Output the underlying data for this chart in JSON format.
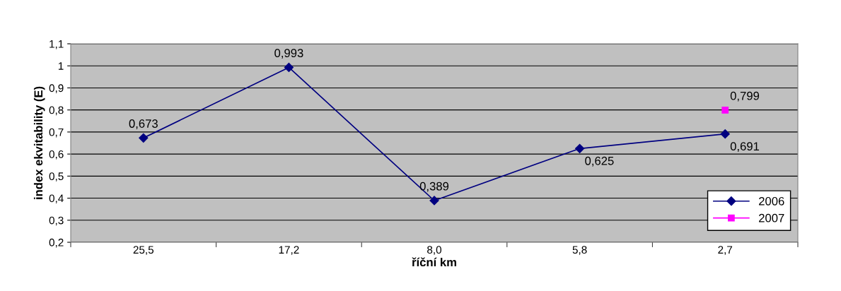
{
  "chart_data": {
    "type": "line",
    "ylabel": "index ekvitability (E)",
    "xlabel": "říční km",
    "categories": [
      "25,5",
      "17,2",
      "8,0",
      "5,8",
      "2,7"
    ],
    "series": [
      {
        "name": "2006",
        "color": "#000080",
        "marker": "diamond",
        "values": [
          0.673,
          0.993,
          0.389,
          0.625,
          0.691
        ],
        "value_labels": [
          "0,673",
          "0,993",
          "0,389",
          "0,625",
          "0,691"
        ]
      },
      {
        "name": "2007",
        "color": "#ff00ff",
        "marker": "square",
        "values": [
          null,
          null,
          null,
          null,
          0.799
        ],
        "value_labels": [
          null,
          null,
          null,
          null,
          "0,799"
        ]
      }
    ],
    "ylim": [
      0.2,
      1.1
    ],
    "yticks": [
      {
        "value": 0.2,
        "label": "0,2"
      },
      {
        "value": 0.3,
        "label": "0,3"
      },
      {
        "value": 0.4,
        "label": "0,4"
      },
      {
        "value": 0.5,
        "label": "0,5"
      },
      {
        "value": 0.6,
        "label": "0,6"
      },
      {
        "value": 0.7,
        "label": "0,7"
      },
      {
        "value": 0.8,
        "label": "0,8"
      },
      {
        "value": 0.9,
        "label": "0,9"
      },
      {
        "value": 1,
        "label": "1"
      },
      {
        "value": 1.1,
        "label": "1,1"
      }
    ],
    "grid": "y",
    "legend": "bottom right"
  }
}
